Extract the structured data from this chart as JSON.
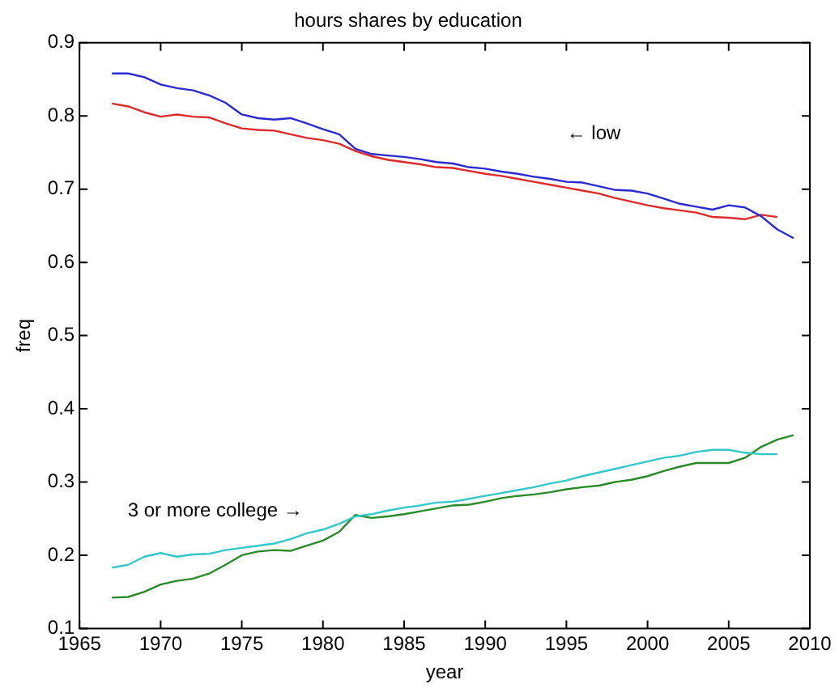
{
  "chart_data": {
    "type": "line",
    "title": "hours shares by education",
    "xlabel": "year",
    "ylabel": "freq",
    "xlim": [
      1965,
      2010
    ],
    "xticks": [
      1965,
      1970,
      1975,
      1980,
      1985,
      1990,
      1995,
      2000,
      2005,
      2010
    ],
    "ylim": [
      0.1,
      0.9
    ],
    "yticks": [
      0.1,
      0.2,
      0.3,
      0.4,
      0.5,
      0.6,
      0.7,
      0.8,
      0.9
    ],
    "grid": false,
    "legend": false,
    "marker": "none",
    "line_style": "solid",
    "annotations": [
      "← low",
      "3 or more college →"
    ],
    "series": [
      {
        "color": "#2a2ad0",
        "x": [
          1967,
          1968,
          1969,
          1970,
          1971,
          1972,
          1973,
          1974,
          1975,
          1976,
          1977,
          1978,
          1979,
          1980,
          1981,
          1982,
          1983,
          1984,
          1985,
          1986,
          1987,
          1988,
          1989,
          1990,
          1991,
          1992,
          1993,
          1994,
          1995,
          1996,
          1997,
          1998,
          1999,
          2000,
          2001,
          2002,
          2003,
          2004,
          2005,
          2006,
          2007,
          2008,
          2009
        ],
        "values": [
          0.858,
          0.858,
          0.853,
          0.843,
          0.838,
          0.835,
          0.828,
          0.818,
          0.802,
          0.797,
          0.795,
          0.797,
          0.79,
          0.782,
          0.775,
          0.755,
          0.748,
          0.746,
          0.744,
          0.741,
          0.737,
          0.735,
          0.73,
          0.728,
          0.724,
          0.721,
          0.717,
          0.714,
          0.71,
          0.709,
          0.704,
          0.699,
          0.698,
          0.694,
          0.687,
          0.68,
          0.676,
          0.672,
          0.678,
          0.675,
          0.663,
          0.645,
          0.633
        ]
      },
      {
        "color": "#dd2a2a",
        "x": [
          1967,
          1968,
          1969,
          1970,
          1971,
          1972,
          1973,
          1974,
          1975,
          1976,
          1977,
          1978,
          1979,
          1980,
          1981,
          1982,
          1983,
          1984,
          1985,
          1986,
          1987,
          1988,
          1989,
          1990,
          1991,
          1992,
          1993,
          1994,
          1995,
          1996,
          1997,
          1998,
          1999,
          2000,
          2001,
          2002,
          2003,
          2004,
          2005,
          2006,
          2007,
          2008
        ],
        "values": [
          0.817,
          0.813,
          0.805,
          0.799,
          0.802,
          0.799,
          0.798,
          0.79,
          0.783,
          0.781,
          0.78,
          0.775,
          0.77,
          0.767,
          0.762,
          0.752,
          0.745,
          0.74,
          0.737,
          0.734,
          0.73,
          0.729,
          0.725,
          0.721,
          0.718,
          0.714,
          0.71,
          0.706,
          0.702,
          0.698,
          0.694,
          0.688,
          0.683,
          0.678,
          0.674,
          0.671,
          0.668,
          0.662,
          0.661,
          0.659,
          0.665,
          0.662
        ]
      },
      {
        "color": "#33c8c8",
        "x": [
          1967,
          1968,
          1969,
          1970,
          1971,
          1972,
          1973,
          1974,
          1975,
          1976,
          1977,
          1978,
          1979,
          1980,
          1981,
          1982,
          1983,
          1984,
          1985,
          1986,
          1987,
          1988,
          1989,
          1990,
          1991,
          1992,
          1993,
          1994,
          1995,
          1996,
          1997,
          1998,
          1999,
          2000,
          2001,
          2002,
          2003,
          2004,
          2005,
          2006,
          2007,
          2008
        ],
        "values": [
          0.183,
          0.187,
          0.198,
          0.203,
          0.198,
          0.201,
          0.202,
          0.207,
          0.21,
          0.213,
          0.216,
          0.222,
          0.23,
          0.235,
          0.243,
          0.253,
          0.256,
          0.261,
          0.265,
          0.268,
          0.272,
          0.273,
          0.277,
          0.281,
          0.285,
          0.289,
          0.293,
          0.298,
          0.302,
          0.308,
          0.313,
          0.318,
          0.323,
          0.328,
          0.333,
          0.336,
          0.341,
          0.344,
          0.344,
          0.34,
          0.338,
          0.338
        ]
      },
      {
        "color": "#2a8a2a",
        "x": [
          1967,
          1968,
          1969,
          1970,
          1971,
          1972,
          1973,
          1974,
          1975,
          1976,
          1977,
          1978,
          1979,
          1980,
          1981,
          1982,
          1983,
          1984,
          1985,
          1986,
          1987,
          1988,
          1989,
          1990,
          1991,
          1992,
          1993,
          1994,
          1995,
          1996,
          1997,
          1998,
          1999,
          2000,
          2001,
          2002,
          2003,
          2004,
          2005,
          2006,
          2007,
          2008,
          2009
        ],
        "values": [
          0.142,
          0.143,
          0.15,
          0.16,
          0.165,
          0.168,
          0.175,
          0.187,
          0.2,
          0.205,
          0.207,
          0.206,
          0.213,
          0.22,
          0.232,
          0.255,
          0.251,
          0.253,
          0.256,
          0.26,
          0.264,
          0.268,
          0.269,
          0.273,
          0.278,
          0.281,
          0.283,
          0.286,
          0.29,
          0.293,
          0.295,
          0.3,
          0.303,
          0.308,
          0.315,
          0.321,
          0.326,
          0.326,
          0.326,
          0.333,
          0.348,
          0.358,
          0.364
        ]
      }
    ]
  }
}
